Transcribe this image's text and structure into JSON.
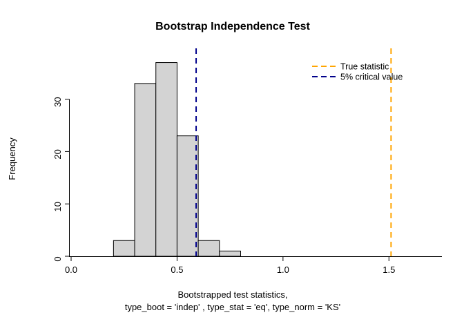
{
  "figure": {
    "title": "Bootstrap Independence Test"
  },
  "chart_data": {
    "type": "bar",
    "subtype": "histogram",
    "title": "Bootstrap Independence Test",
    "xlabel_line1": "Bootstrapped test statistics,",
    "xlabel_line2": "type_boot = 'indep' , type_stat = 'eq', type_norm = 'KS'",
    "ylabel": "Frequency",
    "bin_edges": [
      0.2,
      0.3,
      0.4,
      0.5,
      0.6,
      0.7,
      0.8
    ],
    "counts": [
      3,
      33,
      37,
      23,
      3,
      1
    ],
    "x_ticks": [
      0.0,
      0.5,
      1.0,
      1.5
    ],
    "x_tick_labels": [
      "0.0",
      "0.5",
      "1.0",
      "1.5"
    ],
    "y_ticks": [
      0,
      10,
      20,
      30
    ],
    "y_tick_labels": [
      "0",
      "10",
      "20",
      "30"
    ],
    "xlim": [
      0,
      1.75
    ],
    "ylim": [
      0,
      37.1
    ],
    "grid": false,
    "bar_fill": "#D3D3D3",
    "bar_stroke": "#000000",
    "axis_color": "#000000",
    "vlines": [
      {
        "name": "true-statistic-line",
        "x": 1.51,
        "color": "#FFA500",
        "style": "dashed",
        "label": "True statistic"
      },
      {
        "name": "critical-value-line",
        "x": 0.59,
        "color": "#00008B",
        "style": "dashed",
        "label": "5% critical value"
      }
    ],
    "legend": {
      "position": "top-right",
      "entries": [
        {
          "label": "True statistic",
          "color": "#FFA500",
          "dash": true
        },
        {
          "label": "5% critical value",
          "color": "#00008B",
          "dash": true
        }
      ]
    }
  }
}
